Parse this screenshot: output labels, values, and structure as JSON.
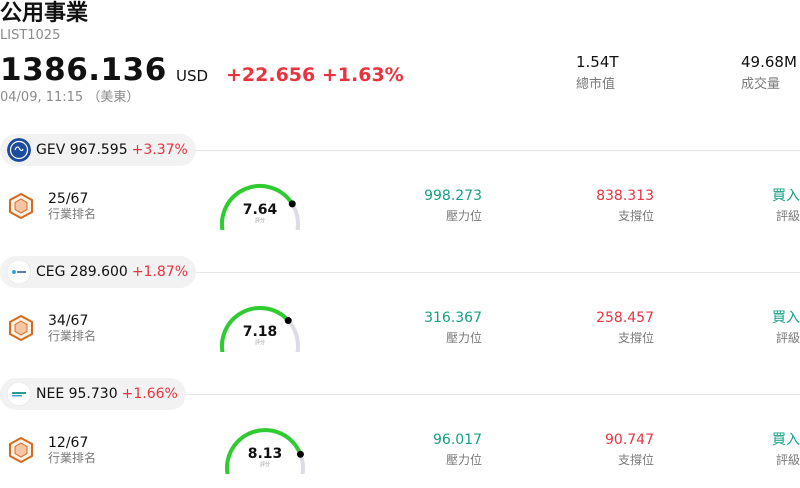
{
  "header": {
    "title": "公用事業",
    "code": "LIST1025",
    "price": "1386.136",
    "currency": "USD",
    "change": "+22.656",
    "change_pct": "+1.63%",
    "time": "04/09, 11:15 （美東）",
    "market_cap_value": "1.54T",
    "market_cap_label": "總市值",
    "volume_value": "49.68M",
    "volume_label": "成交量"
  },
  "stocks": [
    {
      "ticker_price": "GEV 967.595",
      "change_pct": "+3.37%",
      "rank": "25/67",
      "rank_label": "行業排名",
      "score": "7.64",
      "score_label": "評分",
      "score_fraction": 0.764,
      "resistance": "998.273",
      "resistance_label": "壓力位",
      "support": "838.313",
      "support_label": "支撐位",
      "rating": "買入",
      "rating_label": "評級"
    },
    {
      "ticker_price": "CEG 289.600",
      "change_pct": "+1.87%",
      "rank": "34/67",
      "rank_label": "行業排名",
      "score": "7.18",
      "score_label": "評分",
      "score_fraction": 0.718,
      "resistance": "316.367",
      "resistance_label": "壓力位",
      "support": "258.457",
      "support_label": "支撐位",
      "rating": "買入",
      "rating_label": "評級"
    },
    {
      "ticker_price": "NEE 95.730",
      "change_pct": "+1.66%",
      "rank": "12/67",
      "rank_label": "行業排名",
      "score": "8.13",
      "score_label": "評分",
      "score_fraction": 0.813,
      "resistance": "96.017",
      "resistance_label": "壓力位",
      "support": "90.747",
      "support_label": "支撐位",
      "rating": "買入",
      "rating_label": "評級"
    }
  ],
  "colors": {
    "up_red": "#e8343f",
    "green": "#14a085",
    "gauge_green": "#2ecc2e",
    "gauge_track": "#dcdce6",
    "rank_icon": "#d9691c"
  },
  "icons": {
    "gev_logo": "ge-vernova-logo",
    "ceg_logo": "constellation-logo",
    "nee_logo": "nextera-logo",
    "rank": "hexagon-rank-icon"
  }
}
